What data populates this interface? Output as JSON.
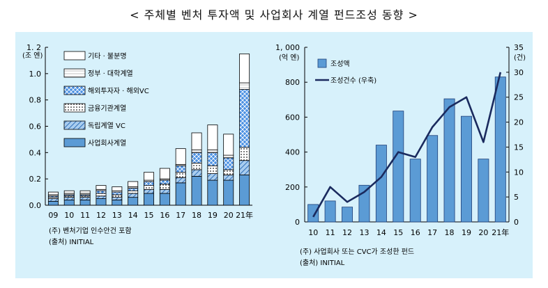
{
  "title": "< 주체별 벤처 투자액 및 사업회사 계열 펀드조성 동향 >",
  "chart_data": [
    {
      "type": "bar",
      "stacked": true,
      "categories": [
        "09",
        "10",
        "11",
        "12",
        "13",
        "14",
        "15",
        "16",
        "17",
        "18",
        "19",
        "20",
        "21"
      ],
      "x_suffix": "年",
      "ylabel": "1. 2\n(조 엔)",
      "ylim": [
        0,
        1.2
      ],
      "yticks": [
        "0.0",
        "0.2",
        "0.4",
        "0.6",
        "0.8",
        "1.0",
        "1. 2"
      ],
      "legend_position": "top-left",
      "series": [
        {
          "name": "사업회사계열",
          "color": "#5b9bd5",
          "pattern": "solid",
          "values": [
            0.03,
            0.04,
            0.04,
            0.05,
            0.04,
            0.06,
            0.09,
            0.09,
            0.17,
            0.22,
            0.19,
            0.19,
            0.23
          ]
        },
        {
          "name": "독립계열 VC",
          "color": "#5b9bd5",
          "pattern": "hatch",
          "values": [
            0.02,
            0.02,
            0.02,
            0.02,
            0.02,
            0.03,
            0.03,
            0.03,
            0.04,
            0.05,
            0.05,
            0.04,
            0.11
          ]
        },
        {
          "name": "금융기관계열",
          "color": "#ffffff",
          "pattern": "dots",
          "values": [
            0.01,
            0.01,
            0.01,
            0.02,
            0.02,
            0.02,
            0.03,
            0.04,
            0.04,
            0.05,
            0.06,
            0.04,
            0.1
          ]
        },
        {
          "name": "해외투자자 · 해외VC",
          "color": "#4a90e2",
          "pattern": "crosshatch",
          "values": [
            0.01,
            0.01,
            0.01,
            0.02,
            0.02,
            0.02,
            0.03,
            0.03,
            0.05,
            0.08,
            0.1,
            0.09,
            0.44
          ]
        },
        {
          "name": "정부 · 대학계열",
          "color": "#ffffff",
          "pattern": "light",
          "values": [
            0.01,
            0.01,
            0.01,
            0.01,
            0.01,
            0.01,
            0.01,
            0.01,
            0.01,
            0.02,
            0.02,
            0.02,
            0.05
          ]
        },
        {
          "name": "기타 · 불분명",
          "color": "#ffffff",
          "pattern": "plain",
          "values": [
            0.02,
            0.02,
            0.02,
            0.03,
            0.03,
            0.04,
            0.06,
            0.08,
            0.12,
            0.13,
            0.19,
            0.16,
            0.22
          ]
        }
      ],
      "notes": [
        "(주) 벤처기업 인수안건 포함",
        "(출처) INITIAL"
      ]
    },
    {
      "type": "bar+line",
      "categories": [
        "10",
        "11",
        "12",
        "13",
        "14",
        "15",
        "16",
        "17",
        "18",
        "19",
        "20",
        "21"
      ],
      "x_suffix": "年",
      "ylabel_left": "1, 000\n(억 엔)",
      "ylabel_right": "35\n(건)",
      "ylim_left": [
        0,
        1000
      ],
      "ylim_right": [
        0,
        35
      ],
      "yticks_left": [
        "0",
        "200",
        "400",
        "600",
        "800",
        "1, 000"
      ],
      "yticks_right": [
        "0",
        "5",
        "10",
        "15",
        "20",
        "25",
        "30",
        "35"
      ],
      "legend_position": "top-left",
      "series": [
        {
          "name": "조성액",
          "type": "bar",
          "axis": "left",
          "color": "#5b9bd5",
          "values": [
            100,
            120,
            85,
            210,
            440,
            635,
            360,
            495,
            705,
            605,
            360,
            830
          ]
        },
        {
          "name": "조성건수 (우축)",
          "type": "line",
          "axis": "right",
          "color": "#1a2a5e",
          "values": [
            1,
            7,
            4,
            6,
            9,
            14,
            13,
            19,
            23,
            25,
            16,
            30
          ]
        }
      ],
      "notes": [
        "(주) 사업회사 또는 CVC가 조성한 펀드",
        "(출처) INITIAL"
      ]
    }
  ]
}
